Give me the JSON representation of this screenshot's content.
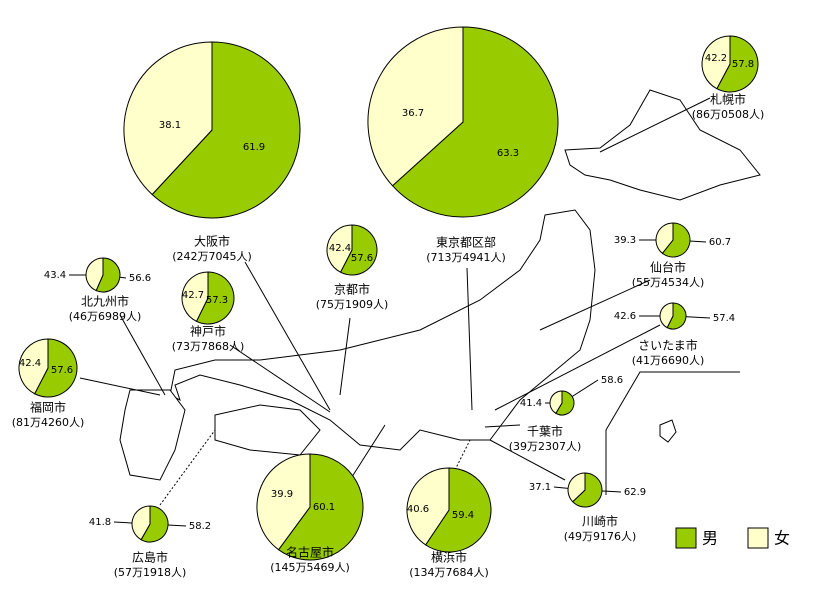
{
  "legend": {
    "male": "男",
    "female": "女",
    "male_color": "#99cc00",
    "female_color": "#ffffcc"
  },
  "cities": [
    {
      "name": "札幌市",
      "population": "(86万0508人)",
      "male": 57.8,
      "female": 42.2
    },
    {
      "name": "大阪市",
      "population": "(242万7045人)",
      "male": 61.9,
      "female": 38.1
    },
    {
      "name": "東京都区部",
      "population": "(713万4941人)",
      "male": 63.3,
      "female": 36.7
    },
    {
      "name": "京都市",
      "population": "(75万1909人)",
      "male": 57.6,
      "female": 42.4
    },
    {
      "name": "仙台市",
      "population": "(55万4534人)",
      "male": 60.7,
      "female": 39.3
    },
    {
      "name": "北九州市",
      "population": "(46万6989人)",
      "male": 56.6,
      "female": 43.4
    },
    {
      "name": "神戸市",
      "population": "(73万7868人)",
      "male": 57.3,
      "female": 42.7
    },
    {
      "name": "さいたま市",
      "population": "(41万6690人)",
      "male": 57.4,
      "female": 42.6
    },
    {
      "name": "福岡市",
      "population": "(81万4260人)",
      "male": 57.6,
      "female": 42.4
    },
    {
      "name": "千葉市",
      "population": "(39万2307人)",
      "male": 58.6,
      "female": 41.4
    },
    {
      "name": "川崎市",
      "population": "(49万9176人)",
      "male": 62.9,
      "female": 37.1
    },
    {
      "name": "広島市",
      "population": "(57万1918人)",
      "male": 58.2,
      "female": 41.8
    },
    {
      "name": "名古屋市",
      "population": "(145万5469人)",
      "male": 60.1,
      "female": 39.9
    },
    {
      "name": "横浜市",
      "population": "(134万7684人)",
      "male": 59.4,
      "female": 40.6
    }
  ]
}
